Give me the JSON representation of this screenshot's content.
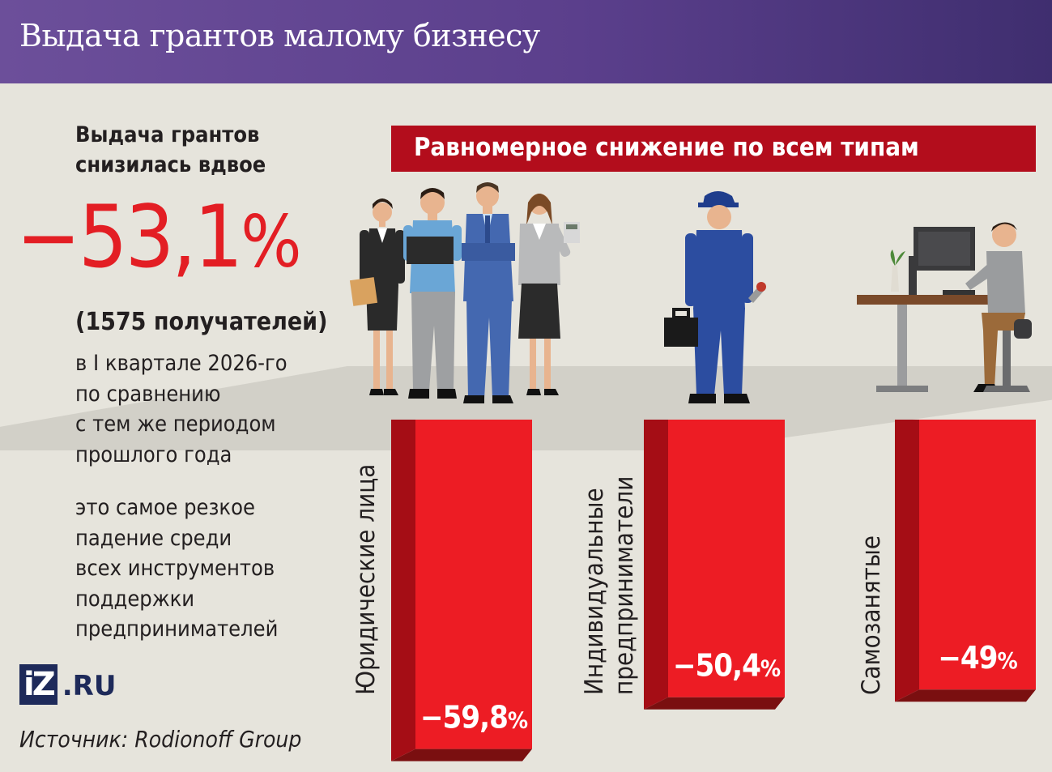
{
  "header": {
    "title": "Выдача грантов малому бизнесу"
  },
  "summary": {
    "lead_line1": "Выдача грантов",
    "lead_line2": "снизилась вдвое",
    "value": "−53,1",
    "value_unit": "%",
    "recipients": "(1575 получателей)",
    "description_lines": [
      "в I квартале 2026-го",
      "по сравнению",
      "с тем же периодом",
      "прошлого года"
    ],
    "note_lines": [
      "это самое резкое",
      "падение среди",
      "всех инструментов",
      "поддержки",
      "предпринимателей"
    ]
  },
  "brand": {
    "logo_mark": "iZ",
    "logo_domain": ".RU"
  },
  "source": "Источник: Rodionoff Group",
  "chart_data": {
    "type": "bar",
    "title": "Равномерное снижение по всем типам",
    "categories": [
      [
        "Юридические лица"
      ],
      [
        "Индивидуальные",
        "предприниматели"
      ],
      [
        "Самозанятые"
      ]
    ],
    "values": [
      -59.8,
      -50.4,
      -49
    ],
    "value_labels": [
      "−59,8",
      "−50,4",
      "−49"
    ],
    "unit": "%",
    "ylim": [
      0,
      -60
    ],
    "colors": {
      "bar_front": "#ed1c24",
      "bar_side": "#a50d15",
      "bar_bottom": "#7a0f10"
    }
  },
  "colors": {
    "accent": "#e31e24",
    "header": "#5b3f8c",
    "banner": "#b30d1c",
    "logo": "#1e2a5a"
  },
  "illustrations": [
    "office-team-figures",
    "mechanic-figure",
    "freelancer-at-desk"
  ]
}
